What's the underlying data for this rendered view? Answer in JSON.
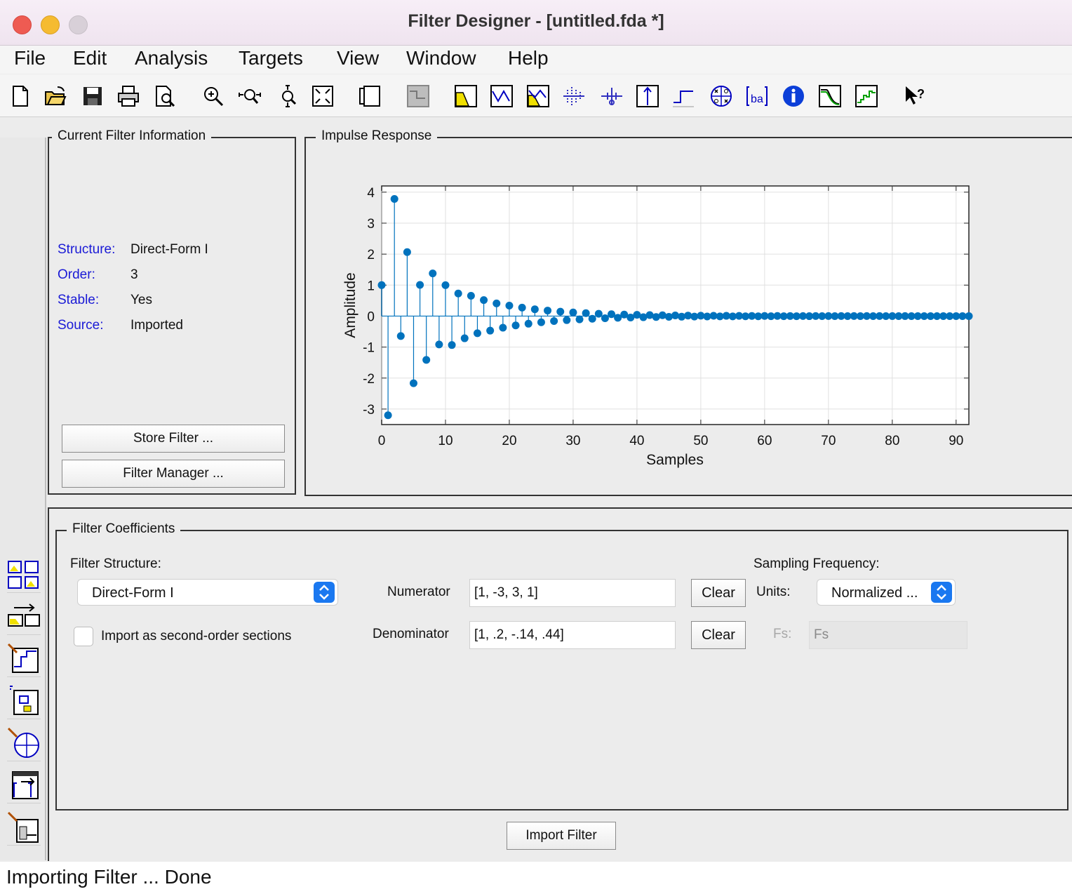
{
  "window": {
    "title": "Filter Designer -  [untitled.fda *]"
  },
  "menu": [
    "File",
    "Edit",
    "Analysis",
    "Targets",
    "View",
    "Window",
    "Help"
  ],
  "toolbar_icons": [
    "new-icon",
    "open-icon",
    "save-icon",
    "print-icon",
    "print-preview-icon",
    "zoom-in-icon",
    "zoom-x-icon",
    "zoom-y-icon",
    "full-view-icon",
    "new-figure-icon",
    "design-filter-icon",
    "magnitude-response-icon",
    "phase-response-icon",
    "magnitude-phase-icon",
    "group-delay-icon",
    "phase-delay-icon",
    "impulse-response-icon",
    "step-response-icon",
    "pole-zero-icon",
    "filter-coefficients-icon",
    "filter-info-icon",
    "magnitude-estimate-icon",
    "round-off-noise-icon",
    "whats-this-icon"
  ],
  "left_strip_icons": [
    "convert-structure-icon",
    "import-filter-icon",
    "design-filter-icon",
    "realize-model-icon",
    "pole-zero-editor-icon",
    "transform-filter-icon",
    "multirate-icon"
  ],
  "current_filter": {
    "title": "Current Filter Information",
    "rows": [
      {
        "label": "Structure:",
        "value": "Direct-Form I"
      },
      {
        "label": "Order:",
        "value": "3"
      },
      {
        "label": "Stable:",
        "value": "Yes"
      },
      {
        "label": "Source:",
        "value": "Imported"
      }
    ],
    "store_button": "Store Filter ...",
    "manager_button": "Filter Manager ..."
  },
  "impulse": {
    "title": "Impulse Response",
    "chart_data": {
      "type": "stem",
      "xlabel": "Samples",
      "ylabel": "Amplitude",
      "xlim": [
        0,
        92
      ],
      "ylim": [
        -3.5,
        4.2
      ],
      "xticks": [
        0,
        10,
        20,
        30,
        40,
        50,
        60,
        70,
        80,
        90
      ],
      "yticks": [
        -3,
        -2,
        -1,
        0,
        1,
        2,
        3,
        4
      ],
      "grid": true,
      "series_color": "#0072bd",
      "numerator": [
        1,
        -3,
        3,
        1
      ],
      "denominator": [
        1,
        0.2,
        -0.14,
        0.44
      ],
      "num_samples": 93
    }
  },
  "coefficients": {
    "title": "Filter Coefficients",
    "structure_label": "Filter Structure:",
    "structure_value": "Direct-Form I",
    "sos_label": "Import as second-order sections",
    "numerator_label": "Numerator",
    "numerator_value": "[1, -3, 3, 1]",
    "denominator_label": "Denominator",
    "denominator_value": "[1, .2, -.14, .44]",
    "clear_label": "Clear",
    "sampling_label": "Sampling Frequency:",
    "units_label": "Units:",
    "units_value": "Normalized ...",
    "fs_label": "Fs:",
    "fs_value": "Fs"
  },
  "import_button": "Import Filter",
  "status": "Importing Filter ... Done"
}
